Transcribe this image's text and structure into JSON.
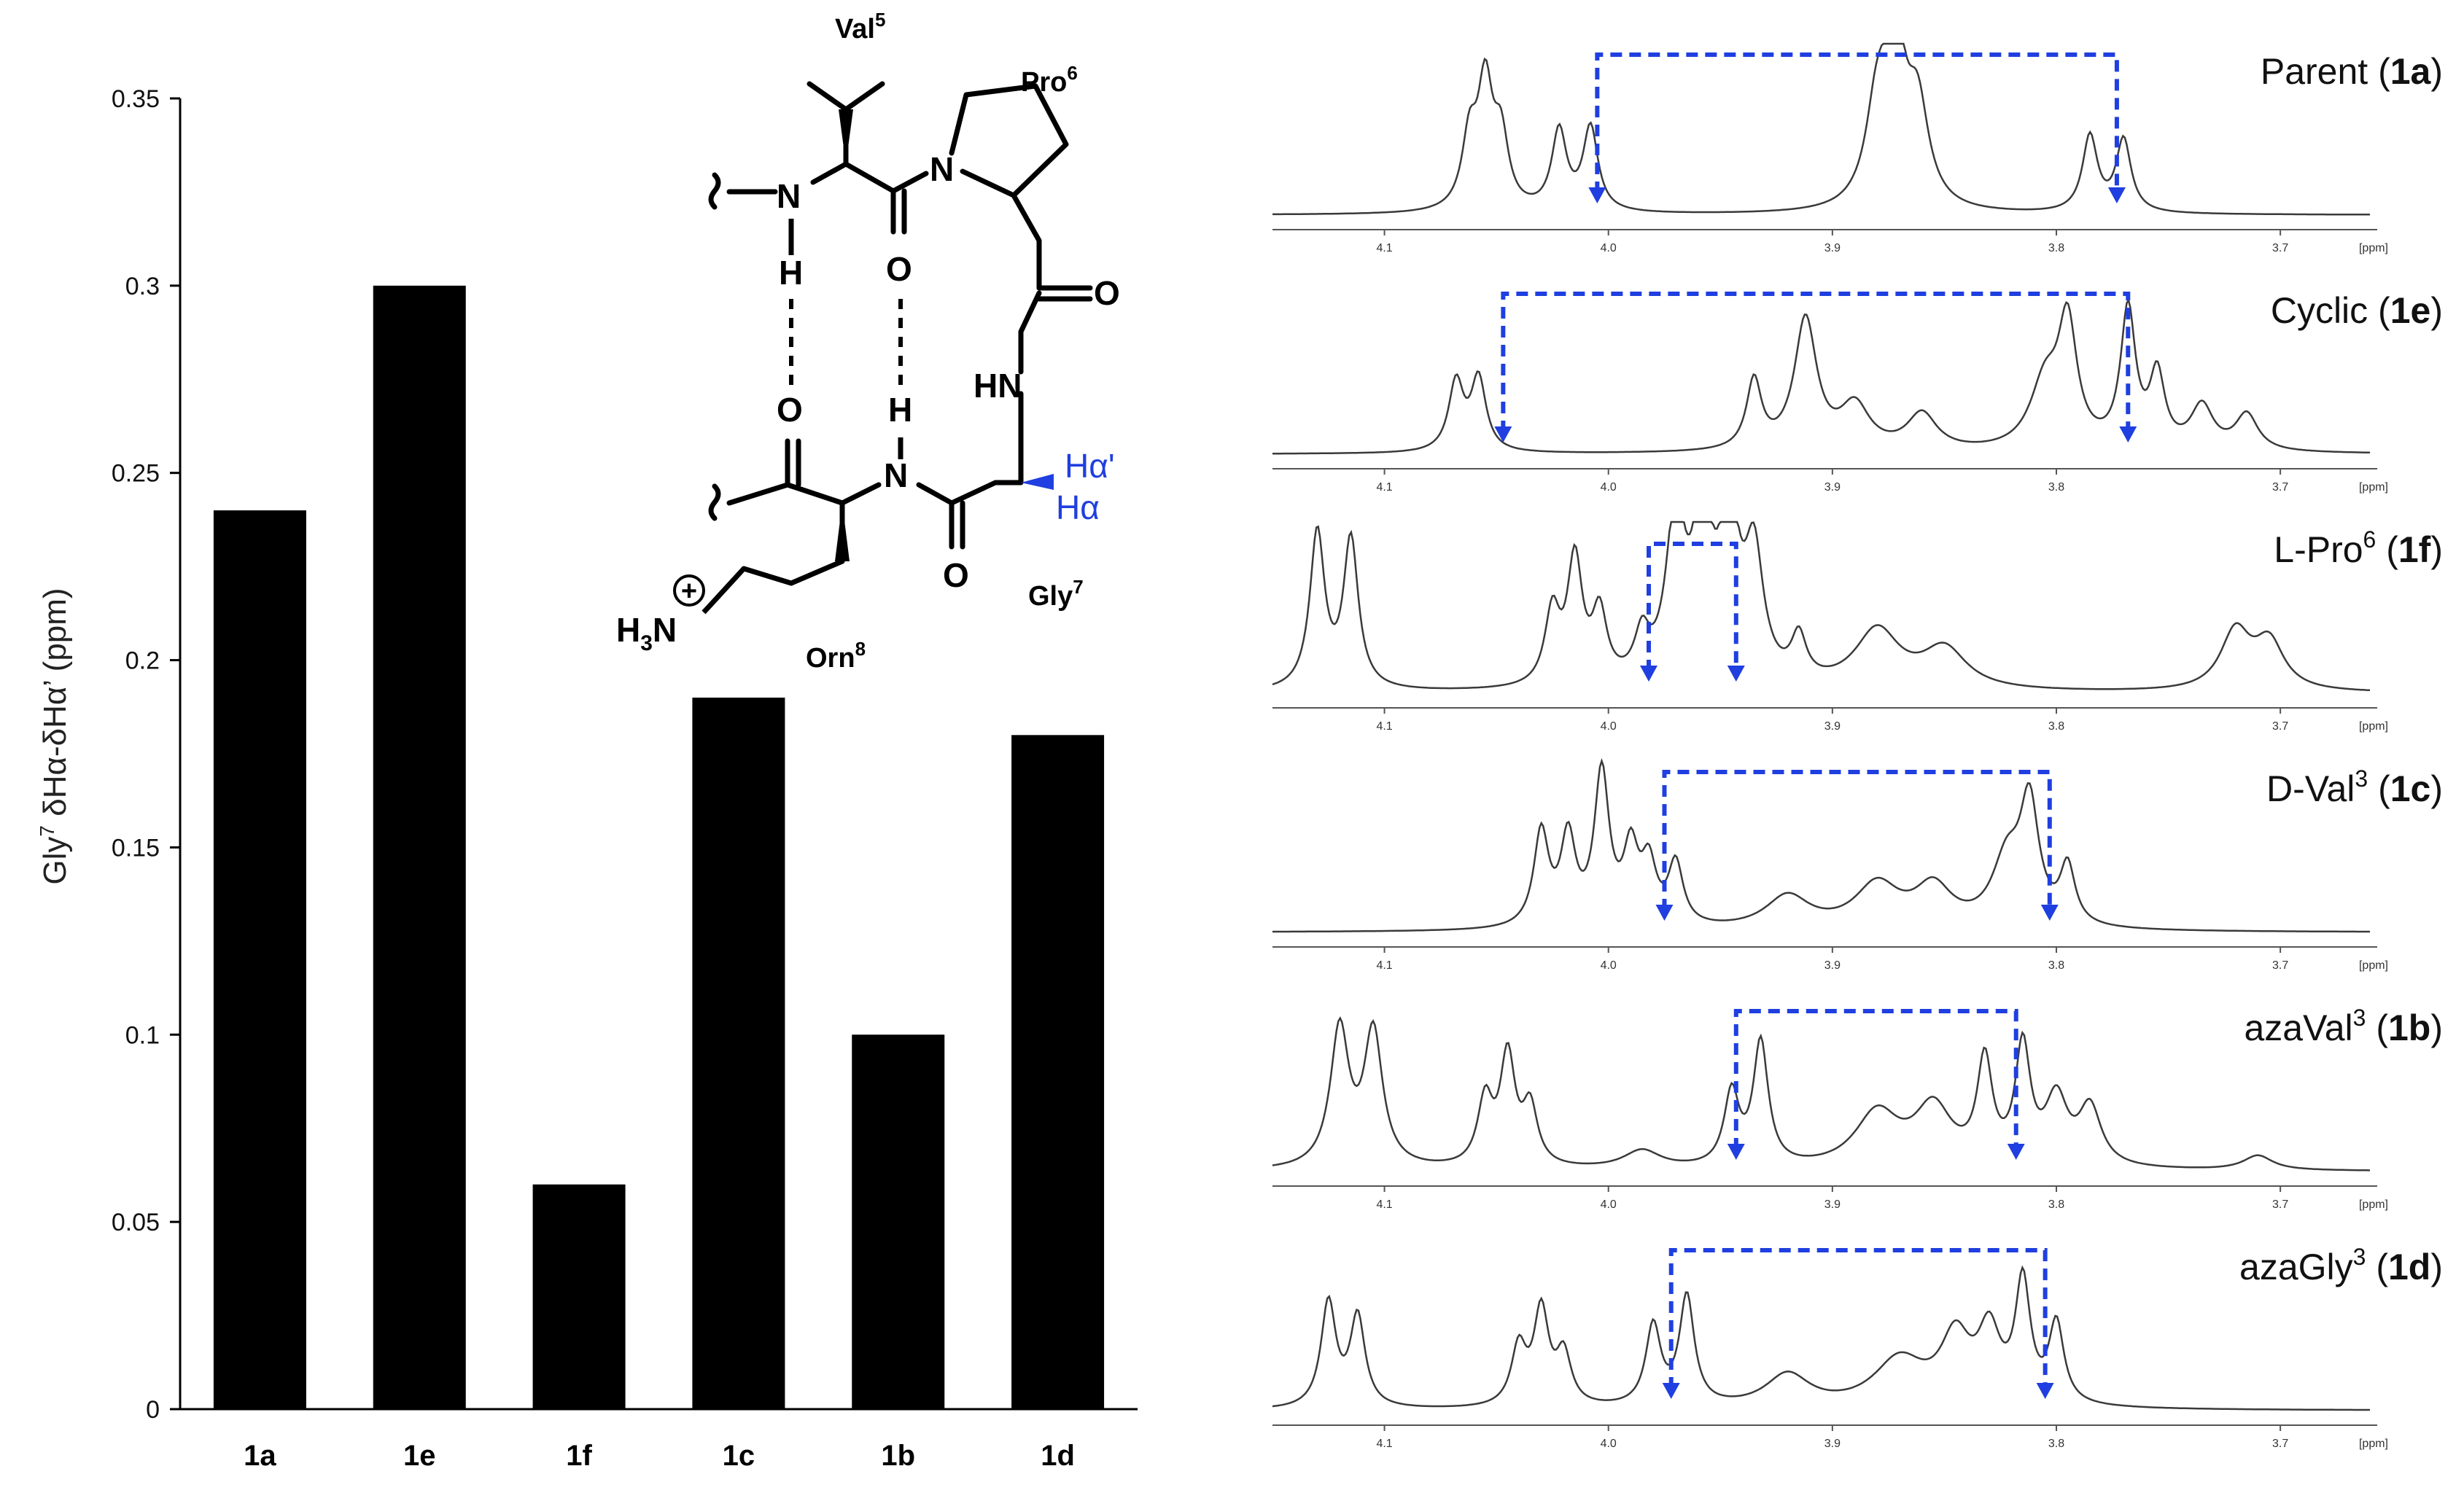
{
  "chart_data": {
    "type": "bar",
    "ylabel_main": "Gly",
    "ylabel_sup": "7",
    "ylabel_rest": " δHα-δHα’ (ppm)",
    "categories": [
      "1a",
      "1e",
      "1f",
      "1c",
      "1b",
      "1d"
    ],
    "values": [
      0.24,
      0.3,
      0.06,
      0.19,
      0.1,
      0.18
    ],
    "ylim": [
      0,
      0.35
    ],
    "yticks": [
      "0",
      "0.05",
      "0.1",
      "0.15",
      "0.2",
      "0.25",
      "0.3",
      "0.35"
    ],
    "bar_color": "#000000",
    "grid": false
  },
  "structure": {
    "val_label": "Val",
    "val_sup": "5",
    "pro_label": "Pro",
    "pro_sup": "6",
    "gly_label": "Gly",
    "gly_sup": "7",
    "orn_label": "Orn",
    "orn_sup": "8",
    "n1": "N",
    "h1": "H",
    "o1": "O",
    "n2": "N",
    "o2": "O",
    "o3": "O",
    "hn": "HN",
    "o4": "O",
    "h2": "H",
    "n3": "N",
    "o5": "O",
    "h3n_main": "H",
    "h3n_sub": "3",
    "h3n_n": "N",
    "plus": "+",
    "ha_prime": "Hα'",
    "ha": "Hα",
    "accent": "#1f3fe0"
  },
  "spectra": {
    "ppm_unit": "[ppm]",
    "ticks": [
      "4.1",
      "4.0",
      "3.9",
      "3.8",
      "3.7"
    ],
    "panels": [
      {
        "name": "Parent (",
        "bold": "1a",
        "close": ")",
        "sup": ""
      },
      {
        "name": "Cyclic (",
        "bold": "1e",
        "close": ")",
        "sup": ""
      },
      {
        "name": "L-Pro",
        "sup": "6",
        "after": " (",
        "bold": "1f",
        "close": ")"
      },
      {
        "name": "D-Val",
        "sup": "3",
        "after": " (",
        "bold": "1c",
        "close": ")"
      },
      {
        "name": "azaVal",
        "sup": "3",
        "after": " (",
        "bold": "1b",
        "close": ")"
      },
      {
        "name": "azaGly",
        "sup": "3",
        "after": " (",
        "bold": "1d",
        "close": ")"
      }
    ],
    "arrow_color": "#1f3fe0",
    "line_color": "#3a3a3a"
  }
}
